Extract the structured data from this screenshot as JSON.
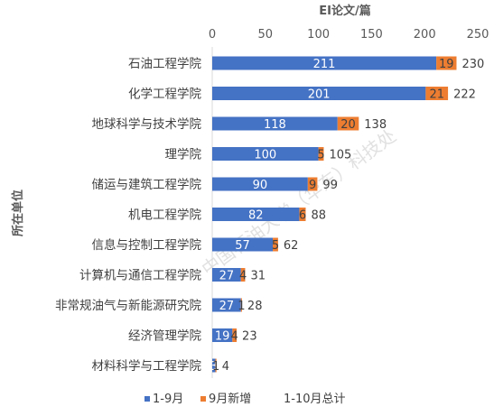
{
  "chart_data": {
    "type": "bar",
    "orientation": "horizontal",
    "stacked": true,
    "x_axis_title": "EI论文/篇",
    "y_axis_title": "所在单位",
    "x_ticks": [
      "0",
      "50",
      "100",
      "150",
      "200",
      "250"
    ],
    "xlim": [
      0,
      250
    ],
    "x_axis_position": "top",
    "grid": false,
    "categories": [
      "石油工程学院",
      "化学工程学院",
      "地球科学与技术学院",
      "理学院",
      "储运与建筑工程学院",
      "机电工程学院",
      "信息与控制工程学院",
      "计算机与通信工程学院",
      "非常规油气与新能源研究院",
      "经济管理学院",
      "材料科学与工程学院"
    ],
    "series": [
      {
        "name": "1-9月",
        "values": [
          211,
          201,
          118,
          100,
          90,
          82,
          57,
          27,
          27,
          19,
          3
        ],
        "color": "#4472C4",
        "label_color": "#ffffff"
      },
      {
        "name": "9月新增",
        "values": [
          19,
          21,
          20,
          5,
          9,
          6,
          5,
          4,
          1,
          4,
          1
        ],
        "color": "#ED7D31",
        "label_color": "#404040"
      }
    ],
    "totals": {
      "name": "1-10月总计",
      "values": [
        230,
        222,
        138,
        105,
        99,
        88,
        62,
        31,
        28,
        23,
        4
      ]
    },
    "legend_position": "bottom",
    "watermark": "中国石油大学（华东）科技处"
  }
}
